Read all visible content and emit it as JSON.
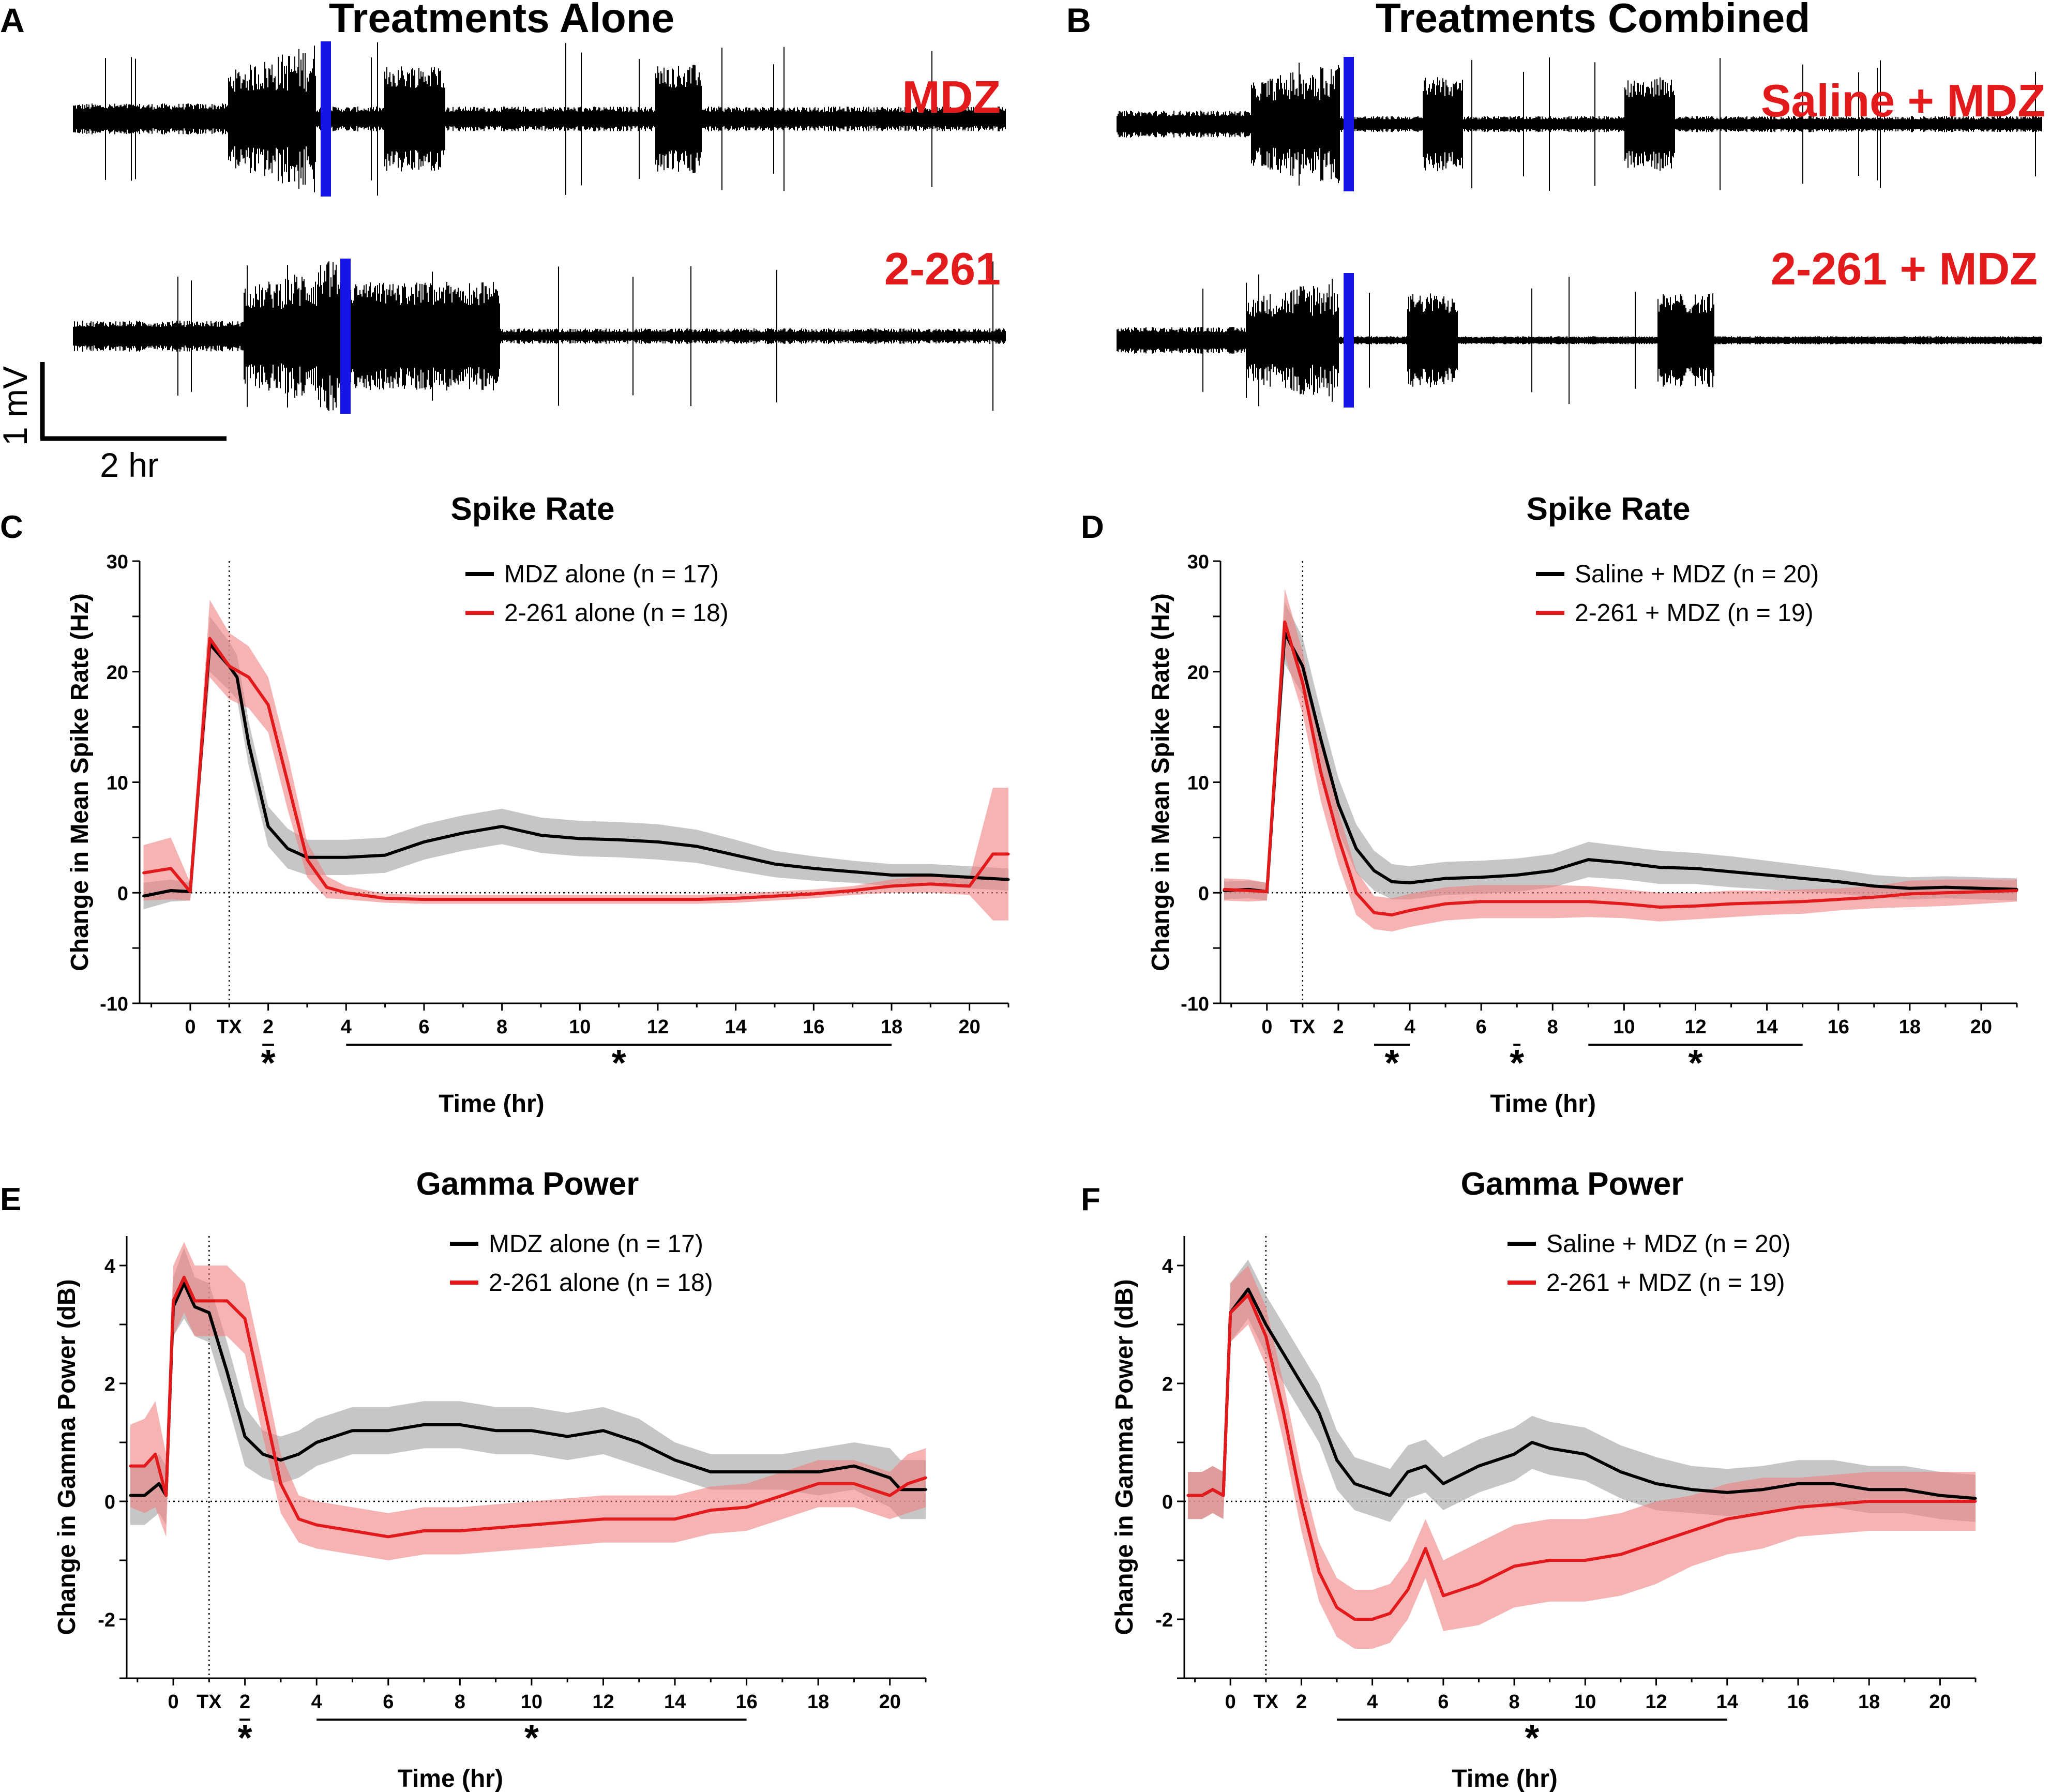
{
  "colors": {
    "black": "#000000",
    "red": "#e31a1c",
    "blue": "#1515e8",
    "grey_band": "#b3b3b3",
    "red_band": "#f08080"
  },
  "panels": {
    "A": {
      "letter": "A",
      "title": "Treatments Alone",
      "trace_labels": [
        "MDZ",
        "2-261"
      ]
    },
    "B": {
      "letter": "B",
      "title": "Treatments Combined",
      "trace_labels": [
        "Saline + MDZ",
        "2-261 + MDZ"
      ]
    },
    "scale_bar": {
      "voltage": "1 mV",
      "time": "2 hr"
    }
  },
  "chart_data": [
    {
      "panel": "C",
      "type": "line",
      "title": "Spike Rate",
      "ylabel": "Change in Mean Spike Rate (Hz)",
      "xlabel": "Time (hr)",
      "ylim": [
        -10,
        30
      ],
      "yticks": [
        "-10",
        "0",
        "10",
        "20",
        "30"
      ],
      "xlim": [
        -1.3,
        21
      ],
      "tx": 1,
      "xticks": [
        {
          "x": 0,
          "label": "0"
        },
        {
          "x": 1,
          "label": "TX"
        },
        {
          "x": 2,
          "label": "2"
        },
        {
          "x": 4,
          "label": "4"
        },
        {
          "x": 6,
          "label": "6"
        },
        {
          "x": 8,
          "label": "8"
        },
        {
          "x": 10,
          "label": "10"
        },
        {
          "x": 12,
          "label": "12"
        },
        {
          "x": 14,
          "label": "14"
        },
        {
          "x": 16,
          "label": "16"
        },
        {
          "x": 18,
          "label": "18"
        },
        {
          "x": 20,
          "label": "20"
        }
      ],
      "significance": [
        {
          "from": 1.85,
          "to": 2.15,
          "label": "*"
        },
        {
          "from": 4,
          "to": 18,
          "label": "*"
        }
      ],
      "series": [
        {
          "name": "MDZ alone (n = 17)",
          "color": "#000000",
          "band": "#b3b3b3",
          "x": [
            -1.2,
            -0.5,
            0,
            0.5,
            1,
            1.2,
            1.5,
            2,
            2.5,
            3,
            3.5,
            4,
            5,
            6,
            7,
            8,
            9,
            10,
            11,
            12,
            13,
            14,
            15,
            16,
            17,
            18,
            19,
            20,
            21
          ],
          "y": [
            -0.3,
            0.2,
            0.1,
            22.5,
            20.5,
            19.5,
            13.5,
            6,
            4,
            3.2,
            3.2,
            3.2,
            3.4,
            4.6,
            5.4,
            6,
            5.2,
            4.9,
            4.8,
            4.6,
            4.2,
            3.4,
            2.6,
            2.2,
            1.9,
            1.6,
            1.6,
            1.4,
            1.2
          ],
          "err": [
            1.2,
            1,
            0.8,
            2.5,
            2.2,
            2,
            2,
            1.8,
            1.8,
            1.6,
            1.6,
            1.6,
            1.6,
            1.6,
            1.6,
            1.6,
            1.6,
            1.6,
            1.6,
            1.6,
            1.5,
            1.4,
            1.2,
            1.1,
            1,
            1,
            1,
            1,
            1
          ]
        },
        {
          "name": "2-261 alone (n = 18)",
          "color": "#e31a1c",
          "band": "#f08080",
          "x": [
            -1.2,
            -0.5,
            0,
            0.5,
            1,
            1.5,
            2,
            2.5,
            3,
            3.5,
            4,
            5,
            6,
            7,
            8,
            9,
            10,
            11,
            12,
            13,
            14,
            15,
            16,
            17,
            18,
            19,
            20,
            20.6,
            21
          ],
          "y": [
            1.8,
            2.2,
            0.1,
            23,
            20.5,
            19.5,
            17,
            10,
            3,
            0.5,
            0,
            -0.5,
            -0.6,
            -0.6,
            -0.6,
            -0.6,
            -0.6,
            -0.6,
            -0.6,
            -0.6,
            -0.5,
            -0.3,
            -0.1,
            0.2,
            0.6,
            0.8,
            0.6,
            3.5,
            3.5
          ],
          "err": [
            2.5,
            2.8,
            0.8,
            3.5,
            3,
            2.8,
            2.5,
            2.5,
            1.6,
            1,
            0.6,
            0.4,
            0.4,
            0.4,
            0.4,
            0.4,
            0.4,
            0.4,
            0.4,
            0.4,
            0.4,
            0.4,
            0.4,
            0.4,
            0.6,
            0.8,
            0.8,
            6,
            6
          ]
        }
      ]
    },
    {
      "panel": "D",
      "type": "line",
      "title": "Spike Rate",
      "ylabel": "Change in Mean Spike Rate (Hz)",
      "xlabel": "Time (hr)",
      "ylim": [
        -10,
        30
      ],
      "yticks": [
        "-10",
        "0",
        "10",
        "20",
        "30"
      ],
      "xlim": [
        -1.3,
        21
      ],
      "tx": 1,
      "xticks": [
        {
          "x": 0,
          "label": "0"
        },
        {
          "x": 1,
          "label": "TX"
        },
        {
          "x": 2,
          "label": "2"
        },
        {
          "x": 4,
          "label": "4"
        },
        {
          "x": 6,
          "label": "6"
        },
        {
          "x": 8,
          "label": "8"
        },
        {
          "x": 10,
          "label": "10"
        },
        {
          "x": 12,
          "label": "12"
        },
        {
          "x": 14,
          "label": "14"
        },
        {
          "x": 16,
          "label": "16"
        },
        {
          "x": 18,
          "label": "18"
        },
        {
          "x": 20,
          "label": "20"
        }
      ],
      "significance": [
        {
          "from": 3,
          "to": 4,
          "label": "*"
        },
        {
          "from": 6.9,
          "to": 7.1,
          "label": "*"
        },
        {
          "from": 9,
          "to": 15,
          "label": "*"
        }
      ],
      "series": [
        {
          "name": "Saline + MDZ (n = 20)",
          "color": "#000000",
          "band": "#b3b3b3",
          "x": [
            -1.2,
            -0.5,
            0,
            0.5,
            1,
            1.5,
            2,
            2.5,
            3,
            3.5,
            4,
            5,
            6,
            7,
            8,
            9,
            10,
            11,
            12,
            13,
            14,
            15,
            16,
            17,
            18,
            19,
            20,
            21
          ],
          "y": [
            0.2,
            0.3,
            0.1,
            23.5,
            20.5,
            14,
            8,
            4,
            2,
            1,
            0.9,
            1.3,
            1.4,
            1.6,
            2,
            3,
            2.7,
            2.3,
            2.2,
            1.9,
            1.6,
            1.3,
            1,
            0.6,
            0.4,
            0.5,
            0.4,
            0.3
          ],
          "err": [
            0.8,
            0.8,
            0.8,
            2.8,
            2.6,
            2.5,
            2.4,
            2.2,
            1.8,
            1.6,
            1.5,
            1.5,
            1.5,
            1.5,
            1.5,
            1.6,
            1.5,
            1.5,
            1.4,
            1.4,
            1.3,
            1.2,
            1.1,
            1,
            1,
            1,
            1,
            1
          ]
        },
        {
          "name": "2-261 + MDZ (n = 19)",
          "color": "#e31a1c",
          "band": "#f08080",
          "x": [
            -1.2,
            -0.5,
            0,
            0.5,
            1,
            1.5,
            2,
            2.5,
            3,
            3.5,
            4,
            5,
            6,
            7,
            8,
            9,
            10,
            11,
            12,
            13,
            14,
            15,
            16,
            17,
            18,
            19,
            20,
            21
          ],
          "y": [
            0.3,
            0.2,
            0.1,
            24.5,
            19,
            11,
            5,
            0,
            -1.8,
            -2,
            -1.6,
            -1,
            -0.8,
            -0.8,
            -0.8,
            -0.8,
            -1,
            -1.3,
            -1.2,
            -1,
            -0.9,
            -0.8,
            -0.6,
            -0.4,
            -0.1,
            0,
            0.1,
            0.2
          ],
          "err": [
            1,
            1,
            0.8,
            3,
            2.8,
            2.6,
            2.4,
            2,
            1.5,
            1.5,
            1.5,
            1.5,
            1.5,
            1.5,
            1.5,
            1.4,
            1.3,
            1.3,
            1.2,
            1.2,
            1.1,
            1.1,
            1,
            1,
            1.2,
            1.2,
            1.1,
            1
          ]
        }
      ]
    },
    {
      "panel": "E",
      "type": "line",
      "title": "Gamma Power",
      "ylabel": "Change in Gamma Power (dB)",
      "xlabel": "Time (hr)",
      "ylim": [
        -3,
        4.5
      ],
      "yticks": [
        "-2",
        "0",
        "2",
        "4"
      ],
      "xlim": [
        -1.3,
        21
      ],
      "tx": 1,
      "xticks": [
        {
          "x": 0,
          "label": "0"
        },
        {
          "x": 1,
          "label": "TX"
        },
        {
          "x": 2,
          "label": "2"
        },
        {
          "x": 4,
          "label": "4"
        },
        {
          "x": 6,
          "label": "6"
        },
        {
          "x": 8,
          "label": "8"
        },
        {
          "x": 10,
          "label": "10"
        },
        {
          "x": 12,
          "label": "12"
        },
        {
          "x": 14,
          "label": "14"
        },
        {
          "x": 16,
          "label": "16"
        },
        {
          "x": 18,
          "label": "18"
        },
        {
          "x": 20,
          "label": "20"
        }
      ],
      "significance": [
        {
          "from": 1.85,
          "to": 2.15,
          "label": "*"
        },
        {
          "from": 4,
          "to": 16,
          "label": "*"
        }
      ],
      "series": [
        {
          "name": "MDZ alone (n = 17)",
          "color": "#000000",
          "band": "#b3b3b3",
          "x": [
            -1.2,
            -0.8,
            -0.4,
            -0.2,
            0,
            0.3,
            0.6,
            1,
            1.5,
            2,
            2.5,
            3,
            3.5,
            4,
            5,
            6,
            7,
            8,
            9,
            10,
            11,
            12,
            13,
            14,
            15,
            16,
            17,
            18,
            19,
            20,
            20.3,
            21
          ],
          "y": [
            0.1,
            0.1,
            0.3,
            0.1,
            3.3,
            3.7,
            3.3,
            3.2,
            2.2,
            1.1,
            0.8,
            0.7,
            0.8,
            1,
            1.2,
            1.2,
            1.3,
            1.3,
            1.2,
            1.2,
            1.1,
            1.2,
            1,
            0.7,
            0.5,
            0.5,
            0.5,
            0.5,
            0.6,
            0.4,
            0.2,
            0.2
          ],
          "err": [
            0.5,
            0.5,
            0.5,
            0.5,
            0.5,
            0.6,
            0.5,
            0.5,
            0.5,
            0.5,
            0.4,
            0.4,
            0.4,
            0.4,
            0.4,
            0.4,
            0.4,
            0.4,
            0.4,
            0.4,
            0.4,
            0.4,
            0.4,
            0.3,
            0.3,
            0.3,
            0.3,
            0.4,
            0.4,
            0.5,
            0.5,
            0.5
          ]
        },
        {
          "name": "2-261 alone (n = 18)",
          "color": "#e31a1c",
          "band": "#f08080",
          "x": [
            -1.2,
            -0.8,
            -0.5,
            -0.2,
            0,
            0.3,
            0.6,
            1,
            1.5,
            2,
            2.5,
            3,
            3.5,
            4,
            5,
            6,
            7,
            8,
            9,
            10,
            11,
            12,
            13,
            14,
            15,
            16,
            17,
            18,
            19,
            20,
            20.5,
            21
          ],
          "y": [
            0.6,
            0.6,
            0.8,
            0.1,
            3.4,
            3.8,
            3.4,
            3.4,
            3.4,
            3.1,
            1.7,
            0.3,
            -0.3,
            -0.4,
            -0.5,
            -0.6,
            -0.5,
            -0.5,
            -0.45,
            -0.4,
            -0.35,
            -0.3,
            -0.3,
            -0.3,
            -0.15,
            -0.1,
            0.1,
            0.3,
            0.3,
            0.1,
            0.3,
            0.4
          ],
          "err": [
            0.7,
            0.8,
            0.9,
            0.7,
            0.6,
            0.6,
            0.6,
            0.6,
            0.6,
            0.6,
            0.6,
            0.5,
            0.4,
            0.4,
            0.4,
            0.4,
            0.4,
            0.4,
            0.4,
            0.4,
            0.4,
            0.4,
            0.4,
            0.4,
            0.4,
            0.4,
            0.4,
            0.4,
            0.4,
            0.4,
            0.5,
            0.5
          ]
        }
      ]
    },
    {
      "panel": "F",
      "type": "line",
      "title": "Gamma Power",
      "ylabel": "Change in Gamma Power (dB)",
      "xlabel": "Time (hr)",
      "ylim": [
        -3,
        4.5
      ],
      "yticks": [
        "-2",
        "0",
        "2",
        "4"
      ],
      "xlim": [
        -1.3,
        21
      ],
      "tx": 1,
      "xticks": [
        {
          "x": 0,
          "label": "0"
        },
        {
          "x": 1,
          "label": "TX"
        },
        {
          "x": 2,
          "label": "2"
        },
        {
          "x": 4,
          "label": "4"
        },
        {
          "x": 6,
          "label": "6"
        },
        {
          "x": 8,
          "label": "8"
        },
        {
          "x": 10,
          "label": "10"
        },
        {
          "x": 12,
          "label": "12"
        },
        {
          "x": 14,
          "label": "14"
        },
        {
          "x": 16,
          "label": "16"
        },
        {
          "x": 18,
          "label": "18"
        },
        {
          "x": 20,
          "label": "20"
        }
      ],
      "significance": [
        {
          "from": 3,
          "to": 14,
          "label": "*"
        }
      ],
      "series": [
        {
          "name": "Saline + MDZ (n = 20)",
          "color": "#000000",
          "band": "#b3b3b3",
          "x": [
            -1.2,
            -0.8,
            -0.5,
            -0.2,
            0,
            0.5,
            1,
            1.5,
            2,
            2.5,
            3,
            3.5,
            4,
            4.5,
            5,
            5.5,
            6,
            7,
            8,
            8.5,
            9,
            10,
            11,
            12,
            13,
            14,
            15,
            16,
            17,
            18,
            19,
            20,
            21
          ],
          "y": [
            0.1,
            0.1,
            0.2,
            0.1,
            3.2,
            3.6,
            3,
            2.5,
            2,
            1.5,
            0.7,
            0.3,
            0.2,
            0.1,
            0.5,
            0.6,
            0.3,
            0.6,
            0.8,
            1,
            0.9,
            0.8,
            0.5,
            0.3,
            0.2,
            0.15,
            0.2,
            0.3,
            0.3,
            0.2,
            0.2,
            0.1,
            0.05
          ],
          "err": [
            0.4,
            0.4,
            0.4,
            0.4,
            0.5,
            0.5,
            0.5,
            0.5,
            0.5,
            0.5,
            0.5,
            0.45,
            0.45,
            0.45,
            0.45,
            0.45,
            0.45,
            0.45,
            0.45,
            0.45,
            0.45,
            0.45,
            0.45,
            0.45,
            0.4,
            0.4,
            0.4,
            0.4,
            0.4,
            0.4,
            0.4,
            0.4,
            0.4
          ]
        },
        {
          "name": "2-261 + MDZ (n = 19)",
          "color": "#e31a1c",
          "band": "#f08080",
          "x": [
            -1.2,
            -0.8,
            -0.5,
            -0.2,
            0,
            0.5,
            1,
            1.5,
            2,
            2.5,
            3,
            3.5,
            4,
            4.5,
            5,
            5.5,
            6,
            7,
            8,
            9,
            10,
            11,
            12,
            13,
            14,
            15,
            16,
            17,
            18,
            19,
            20,
            21
          ],
          "y": [
            0.1,
            0.1,
            0.2,
            0.1,
            3.2,
            3.5,
            2.8,
            1.5,
            0,
            -1.2,
            -1.8,
            -2,
            -2,
            -1.9,
            -1.5,
            -0.8,
            -1.6,
            -1.4,
            -1.1,
            -1,
            -1,
            -0.9,
            -0.7,
            -0.5,
            -0.3,
            -0.2,
            -0.1,
            -0.05,
            0,
            0,
            0,
            0
          ],
          "err": [
            0.4,
            0.4,
            0.4,
            0.4,
            0.5,
            0.5,
            0.5,
            0.5,
            0.5,
            0.5,
            0.5,
            0.5,
            0.5,
            0.5,
            0.5,
            0.5,
            0.6,
            0.7,
            0.7,
            0.7,
            0.7,
            0.7,
            0.7,
            0.6,
            0.6,
            0.6,
            0.5,
            0.5,
            0.5,
            0.5,
            0.5,
            0.5
          ]
        }
      ]
    }
  ]
}
